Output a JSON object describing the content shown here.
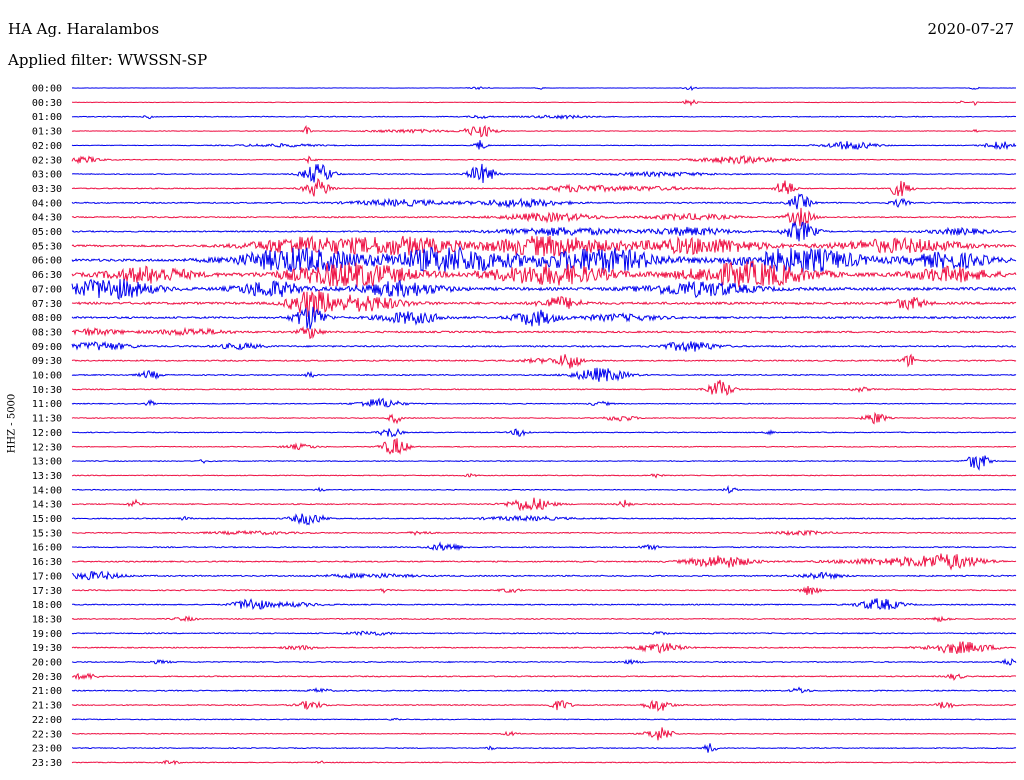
{
  "header": {
    "station": "HA Ag. Haralambos",
    "date": "2020-07-27",
    "filter": "Applied filter: WWSSN-SP"
  },
  "chart_data": {
    "type": "line",
    "title": "HA Ag. Haralambos",
    "ylabel": "HHZ - 5000",
    "row_labels": [
      "00:00",
      "00:30",
      "01:00",
      "01:30",
      "02:00",
      "02:30",
      "03:00",
      "03:30",
      "04:00",
      "04:30",
      "05:00",
      "05:30",
      "06:00",
      "06:30",
      "07:00",
      "07:30",
      "08:00",
      "08:30",
      "09:00",
      "09:30",
      "10:00",
      "10:30",
      "11:00",
      "11:30",
      "12:00",
      "12:30",
      "13:00",
      "13:30",
      "14:00",
      "14:30",
      "15:00",
      "15:30",
      "16:00",
      "16:30",
      "17:00",
      "17:30",
      "18:00",
      "18:30",
      "19:00",
      "19:30",
      "20:00",
      "20:30",
      "21:00",
      "21:30",
      "22:00",
      "22:30",
      "23:00",
      "23:30"
    ],
    "colors": [
      "#0000ee",
      "#ee1144"
    ],
    "noise": [
      0.15,
      0.25,
      0.4,
      0.3,
      0.3,
      0.4,
      0.4,
      0.5,
      0.6,
      0.6,
      0.6,
      0.9,
      1.2,
      1.4,
      1.4,
      1.1,
      0.9,
      0.8,
      0.7,
      0.6,
      0.5,
      0.5,
      0.4,
      0.4,
      0.4,
      0.4,
      0.4,
      0.4,
      0.4,
      0.5,
      0.5,
      0.5,
      0.5,
      0.6,
      0.6,
      0.5,
      0.5,
      0.5,
      0.5,
      0.5,
      0.5,
      0.5,
      0.5,
      0.5,
      0.4,
      0.4,
      0.4,
      0.4
    ],
    "events": [
      [
        [
          480,
          9,
          1.2
        ],
        [
          540,
          4,
          1.5
        ],
        [
          690,
          6,
          2
        ],
        [
          975,
          4,
          1.5
        ]
      ],
      [
        [
          690,
          6,
          3
        ],
        [
          960,
          3,
          2
        ],
        [
          975,
          2,
          3
        ]
      ],
      [
        [
          480,
          10,
          1.5
        ],
        [
          150,
          5,
          2
        ],
        [
          560,
          30,
          1.5
        ]
      ],
      [
        [
          307,
          3,
          5
        ],
        [
          480,
          14,
          6
        ],
        [
          410,
          40,
          1.5
        ],
        [
          975,
          2,
          2
        ]
      ],
      [
        [
          480,
          6,
          5
        ],
        [
          850,
          25,
          4
        ],
        [
          1000,
          15,
          4
        ],
        [
          280,
          40,
          1.5
        ]
      ],
      [
        [
          85,
          15,
          3
        ],
        [
          740,
          40,
          3.5
        ],
        [
          310,
          5,
          3
        ]
      ],
      [
        [
          318,
          14,
          10
        ],
        [
          482,
          12,
          10
        ],
        [
          660,
          50,
          2
        ]
      ],
      [
        [
          318,
          12,
          9
        ],
        [
          575,
          30,
          3
        ],
        [
          785,
          8,
          10
        ],
        [
          900,
          10,
          8
        ],
        [
          640,
          50,
          2
        ]
      ],
      [
        [
          400,
          45,
          3
        ],
        [
          520,
          40,
          4
        ],
        [
          800,
          10,
          8
        ],
        [
          900,
          8,
          4
        ]
      ],
      [
        [
          550,
          45,
          4
        ],
        [
          800,
          12,
          9
        ],
        [
          690,
          40,
          3
        ]
      ],
      [
        [
          560,
          60,
          4
        ],
        [
          690,
          40,
          4
        ],
        [
          800,
          15,
          10
        ],
        [
          960,
          30,
          3
        ]
      ],
      [
        [
          300,
          50,
          8
        ],
        [
          400,
          60,
          9
        ],
        [
          550,
          60,
          10
        ],
        [
          700,
          60,
          8
        ],
        [
          900,
          60,
          7
        ]
      ],
      [
        [
          300,
          60,
          12
        ],
        [
          450,
          60,
          13
        ],
        [
          600,
          60,
          12
        ],
        [
          800,
          60,
          12
        ],
        [
          950,
          40,
          8
        ]
      ],
      [
        [
          150,
          40,
          8
        ],
        [
          350,
          60,
          12
        ],
        [
          550,
          60,
          10
        ],
        [
          750,
          60,
          12
        ],
        [
          950,
          40,
          7
        ]
      ],
      [
        [
          110,
          40,
          10
        ],
        [
          270,
          30,
          8
        ],
        [
          400,
          40,
          7
        ],
        [
          700,
          50,
          7
        ]
      ],
      [
        [
          310,
          20,
          12
        ],
        [
          360,
          40,
          8
        ],
        [
          560,
          20,
          6
        ],
        [
          910,
          15,
          6
        ]
      ],
      [
        [
          310,
          15,
          12
        ],
        [
          410,
          30,
          6
        ],
        [
          535,
          20,
          8
        ],
        [
          620,
          40,
          3
        ]
      ],
      [
        [
          90,
          30,
          3
        ],
        [
          190,
          35,
          3
        ],
        [
          310,
          10,
          6
        ]
      ],
      [
        [
          100,
          30,
          4
        ],
        [
          240,
          20,
          3
        ],
        [
          690,
          25,
          5
        ]
      ],
      [
        [
          570,
          10,
          7
        ],
        [
          910,
          8,
          6
        ],
        [
          550,
          30,
          2
        ]
      ],
      [
        [
          150,
          10,
          4
        ],
        [
          600,
          25,
          7
        ],
        [
          310,
          4,
          4
        ]
      ],
      [
        [
          720,
          12,
          9
        ],
        [
          860,
          10,
          2
        ]
      ],
      [
        [
          150,
          4,
          3
        ],
        [
          380,
          20,
          5
        ],
        [
          600,
          10,
          2
        ]
      ],
      [
        [
          395,
          6,
          5
        ],
        [
          620,
          15,
          3
        ],
        [
          875,
          10,
          6
        ]
      ],
      [
        [
          520,
          8,
          4
        ],
        [
          390,
          10,
          5
        ],
        [
          770,
          5,
          2
        ]
      ],
      [
        [
          395,
          12,
          9
        ],
        [
          300,
          15,
          2.5
        ]
      ],
      [
        [
          978,
          10,
          9
        ],
        [
          205,
          5,
          2
        ]
      ],
      [
        [
          470,
          6,
          1.5
        ],
        [
          655,
          6,
          2
        ]
      ],
      [
        [
          320,
          4,
          2
        ],
        [
          730,
          6,
          3
        ]
      ],
      [
        [
          530,
          20,
          7
        ],
        [
          135,
          6,
          4
        ],
        [
          625,
          6,
          4
        ]
      ],
      [
        [
          308,
          15,
          6
        ],
        [
          185,
          5,
          2
        ],
        [
          525,
          40,
          2
        ]
      ],
      [
        [
          250,
          40,
          1.5
        ],
        [
          420,
          10,
          2
        ],
        [
          800,
          25,
          2
        ]
      ],
      [
        [
          445,
          15,
          4
        ],
        [
          650,
          10,
          2
        ]
      ],
      [
        [
          720,
          30,
          6
        ],
        [
          950,
          30,
          6
        ],
        [
          900,
          60,
          3.5
        ]
      ],
      [
        [
          95,
          25,
          4
        ],
        [
          820,
          20,
          3
        ],
        [
          370,
          40,
          2
        ]
      ],
      [
        [
          385,
          5,
          2
        ],
        [
          810,
          8,
          5
        ],
        [
          510,
          10,
          2
        ]
      ],
      [
        [
          250,
          15,
          6
        ],
        [
          880,
          20,
          6
        ],
        [
          290,
          30,
          2
        ]
      ],
      [
        [
          185,
          10,
          2
        ],
        [
          940,
          10,
          2
        ]
      ],
      [
        [
          660,
          8,
          1.5
        ],
        [
          370,
          20,
          2
        ]
      ],
      [
        [
          660,
          20,
          5
        ],
        [
          960,
          30,
          6
        ],
        [
          300,
          15,
          2
        ]
      ],
      [
        [
          1010,
          8,
          3
        ],
        [
          630,
          10,
          1.5
        ],
        [
          160,
          10,
          1.5
        ]
      ],
      [
        [
          85,
          12,
          3
        ],
        [
          955,
          8,
          3
        ]
      ],
      [
        [
          320,
          10,
          2
        ],
        [
          800,
          8,
          3
        ]
      ],
      [
        [
          310,
          12,
          4
        ],
        [
          560,
          10,
          5
        ],
        [
          658,
          12,
          6
        ],
        [
          945,
          8,
          4
        ]
      ],
      [
        [
          395,
          5,
          1.2
        ]
      ],
      [
        [
          660,
          12,
          7
        ],
        [
          510,
          6,
          2
        ]
      ],
      [
        [
          490,
          4,
          2
        ],
        [
          710,
          6,
          5
        ]
      ],
      [
        [
          170,
          8,
          2
        ],
        [
          320,
          4,
          2
        ]
      ]
    ]
  }
}
